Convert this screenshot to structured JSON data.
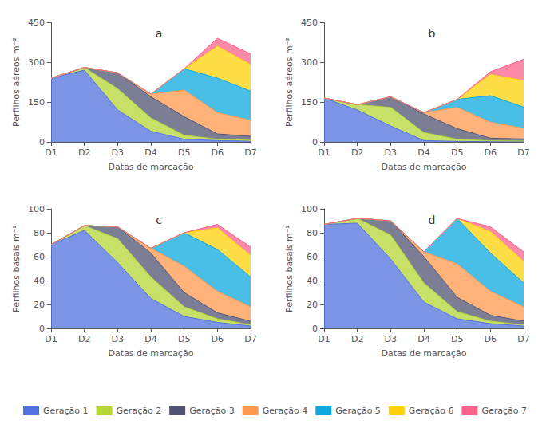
{
  "chart_data": [
    {
      "type": "area",
      "stacked": true,
      "title": "a",
      "xlabel": "Datas de marcação",
      "ylabel": "Perfilhos aéreos m⁻²",
      "categories": [
        "D1",
        "D2",
        "D3",
        "D4",
        "D5",
        "D6",
        "D7"
      ],
      "series": [
        {
          "name": "Geração 1",
          "values": [
            240,
            270,
            120,
            40,
            10,
            5,
            3
          ]
        },
        {
          "name": "Geração 2",
          "values": [
            0,
            10,
            80,
            50,
            15,
            5,
            3
          ]
        },
        {
          "name": "Geração 3",
          "values": [
            0,
            0,
            60,
            80,
            70,
            20,
            15
          ]
        },
        {
          "name": "Geração 4",
          "values": [
            0,
            0,
            0,
            10,
            100,
            80,
            60
          ]
        },
        {
          "name": "Geração 5",
          "values": [
            0,
            0,
            0,
            0,
            80,
            130,
            110
          ]
        },
        {
          "name": "Geração 6",
          "values": [
            0,
            0,
            0,
            0,
            0,
            120,
            100
          ]
        },
        {
          "name": "Geração 7",
          "values": [
            0,
            0,
            0,
            0,
            0,
            30,
            40
          ]
        }
      ],
      "ylim": [
        0,
        450
      ],
      "yticks": [
        0,
        150,
        300,
        450
      ],
      "grid": false,
      "legend": "bottom"
    },
    {
      "type": "area",
      "stacked": true,
      "title": "b",
      "xlabel": "Datas de marcação",
      "ylabel": "Perfilhos aéreos m⁻²",
      "categories": [
        "D1",
        "D2",
        "D3",
        "D4",
        "D5",
        "D6",
        "D7"
      ],
      "series": [
        {
          "name": "Geração 1",
          "values": [
            165,
            120,
            60,
            5,
            2,
            1,
            1
          ]
        },
        {
          "name": "Geração 2",
          "values": [
            0,
            20,
            70,
            30,
            8,
            3,
            2
          ]
        },
        {
          "name": "Geração 3",
          "values": [
            0,
            0,
            40,
            70,
            40,
            10,
            8
          ]
        },
        {
          "name": "Geração 4",
          "values": [
            0,
            0,
            0,
            5,
            80,
            60,
            40
          ]
        },
        {
          "name": "Geração 5",
          "values": [
            0,
            0,
            0,
            0,
            30,
            100,
            80
          ]
        },
        {
          "name": "Geração 6",
          "values": [
            0,
            0,
            0,
            0,
            0,
            80,
            100
          ]
        },
        {
          "name": "Geração 7",
          "values": [
            0,
            0,
            0,
            0,
            0,
            10,
            80
          ]
        }
      ],
      "ylim": [
        0,
        450
      ],
      "yticks": [
        0,
        150,
        300,
        450
      ],
      "grid": false,
      "legend": "bottom"
    },
    {
      "type": "area",
      "stacked": true,
      "title": "c",
      "xlabel": "Datas de marcação",
      "ylabel": "Perfilhos basais m⁻²",
      "categories": [
        "D1",
        "D2",
        "D3",
        "D4",
        "D5",
        "D6",
        "D7"
      ],
      "series": [
        {
          "name": "Geração 1",
          "values": [
            70,
            82,
            55,
            25,
            10,
            5,
            2
          ]
        },
        {
          "name": "Geração 2",
          "values": [
            0,
            4,
            20,
            18,
            8,
            3,
            1
          ]
        },
        {
          "name": "Geração 3",
          "values": [
            0,
            0,
            10,
            20,
            12,
            5,
            3
          ]
        },
        {
          "name": "Geração 4",
          "values": [
            0,
            0,
            0,
            4,
            22,
            18,
            12
          ]
        },
        {
          "name": "Geração 5",
          "values": [
            0,
            0,
            0,
            0,
            28,
            35,
            25
          ]
        },
        {
          "name": "Geração 6",
          "values": [
            0,
            0,
            0,
            0,
            0,
            18,
            18
          ]
        },
        {
          "name": "Geração 7",
          "values": [
            0,
            0,
            0,
            0,
            0,
            3,
            7
          ]
        }
      ],
      "ylim": [
        0,
        100
      ],
      "yticks": [
        0,
        20,
        40,
        60,
        80,
        100
      ],
      "grid": false,
      "legend": "bottom"
    },
    {
      "type": "area",
      "stacked": true,
      "title": "d",
      "xlabel": "Datas de marcação",
      "ylabel": "Perfilhos basais m⁻²",
      "categories": [
        "D1",
        "D2",
        "D3",
        "D4",
        "D5",
        "D6",
        "D7"
      ],
      "series": [
        {
          "name": "Geração 1",
          "values": [
            87,
            88,
            58,
            22,
            8,
            4,
            2
          ]
        },
        {
          "name": "Geração 2",
          "values": [
            0,
            4,
            20,
            16,
            6,
            2,
            1
          ]
        },
        {
          "name": "Geração 3",
          "values": [
            0,
            0,
            12,
            22,
            12,
            5,
            3
          ]
        },
        {
          "name": "Geração 4",
          "values": [
            0,
            0,
            0,
            4,
            28,
            20,
            12
          ]
        },
        {
          "name": "Geração 5",
          "values": [
            0,
            0,
            0,
            0,
            38,
            32,
            20
          ]
        },
        {
          "name": "Geração 6",
          "values": [
            0,
            0,
            0,
            0,
            0,
            18,
            18
          ]
        },
        {
          "name": "Geração 7",
          "values": [
            0,
            0,
            0,
            0,
            0,
            4,
            8
          ]
        }
      ],
      "ylim": [
        0,
        100
      ],
      "yticks": [
        0,
        20,
        40,
        60,
        80,
        100
      ],
      "grid": false,
      "legend": "bottom"
    }
  ]
}
